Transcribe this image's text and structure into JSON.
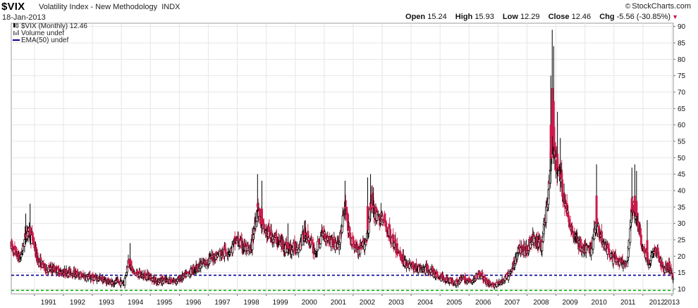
{
  "header": {
    "ticker": "$VIX",
    "name": "Volatility Index - New Methodology",
    "exchange": "INDX",
    "date": "18-Jan-2013",
    "brand": "StockCharts.com",
    "brand_symbol": "©"
  },
  "quote": {
    "open_label": "Open",
    "open": "15.24",
    "high_label": "High",
    "high": "15.93",
    "low_label": "Low",
    "low": "12.29",
    "close_label": "Close",
    "close": "12.46",
    "chg_label": "Chg",
    "chg": "-5.56 (-30.85%)"
  },
  "legend": {
    "price": "$VIX (Monthly) 12.46",
    "volume": "Volume undef",
    "ema": "EMA(50) undef"
  },
  "colors": {
    "up": "#000000",
    "down": "#cc1a4a",
    "blue_line": "#000099",
    "green_line": "#00aa00",
    "grid": "#e6e6e6"
  },
  "chart_data": {
    "type": "candlestick",
    "title": "$VIX Volatility Index - New Methodology INDX",
    "x_axis_labels": [
      "1991",
      "1992",
      "1993",
      "1994",
      "1995",
      "1996",
      "1997",
      "1998",
      "1999",
      "2000",
      "2001",
      "2002",
      "2003",
      "2004",
      "2005",
      "2006",
      "2007",
      "2008",
      "2009",
      "2010",
      "2011",
      "2012",
      "2013"
    ],
    "y_axis_labels": [
      10,
      15,
      20,
      25,
      30,
      35,
      40,
      45,
      50,
      55,
      60,
      65,
      70,
      75,
      80,
      85,
      90
    ],
    "ylim": [
      8.5,
      91
    ],
    "xlim": [
      1990.2,
      2013.05
    ],
    "horizontal_lines": [
      {
        "value": 14.2,
        "style": "dashed",
        "color": "#000099"
      },
      {
        "value": 9.6,
        "style": "dashed",
        "color": "#00aa00"
      }
    ],
    "anchors": [
      [
        1990.2,
        23
      ],
      [
        1990.5,
        19
      ],
      [
        1990.75,
        28
      ],
      [
        1990.95,
        25
      ],
      [
        1991.1,
        19
      ],
      [
        1991.4,
        16
      ],
      [
        1991.7,
        16
      ],
      [
        1991.95,
        15
      ],
      [
        1992.3,
        15
      ],
      [
        1992.6,
        14
      ],
      [
        1992.9,
        13.5
      ],
      [
        1993.3,
        13
      ],
      [
        1993.6,
        12
      ],
      [
        1993.9,
        12
      ],
      [
        1994.1,
        12
      ],
      [
        1994.25,
        19
      ],
      [
        1994.4,
        15
      ],
      [
        1994.7,
        14
      ],
      [
        1994.9,
        14
      ],
      [
        1995.2,
        12.5
      ],
      [
        1995.5,
        12.5
      ],
      [
        1995.9,
        12.5
      ],
      [
        1996.2,
        14
      ],
      [
        1996.5,
        16
      ],
      [
        1996.9,
        18
      ],
      [
        1997.2,
        20
      ],
      [
        1997.5,
        21
      ],
      [
        1997.8,
        22
      ],
      [
        1997.95,
        25
      ],
      [
        1998.2,
        23
      ],
      [
        1998.45,
        21
      ],
      [
        1998.7,
        35
      ],
      [
        1998.9,
        28
      ],
      [
        1999.2,
        26
      ],
      [
        1999.5,
        24
      ],
      [
        1999.8,
        22
      ],
      [
        2000.1,
        23
      ],
      [
        2000.35,
        27
      ],
      [
        2000.7,
        21
      ],
      [
        2000.95,
        27
      ],
      [
        2001.2,
        25
      ],
      [
        2001.5,
        23
      ],
      [
        2001.72,
        35
      ],
      [
        2001.9,
        25
      ],
      [
        2002.2,
        21
      ],
      [
        2002.45,
        25
      ],
      [
        2002.65,
        37
      ],
      [
        2002.8,
        32
      ],
      [
        2003.0,
        31
      ],
      [
        2003.2,
        28
      ],
      [
        2003.5,
        22
      ],
      [
        2003.8,
        18
      ],
      [
        2004.0,
        17
      ],
      [
        2004.3,
        16
      ],
      [
        2004.6,
        16
      ],
      [
        2004.9,
        14
      ],
      [
        2005.2,
        13
      ],
      [
        2005.5,
        12
      ],
      [
        2005.8,
        13
      ],
      [
        2006.1,
        12
      ],
      [
        2006.35,
        15
      ],
      [
        2006.6,
        12
      ],
      [
        2006.9,
        11
      ],
      [
        2007.2,
        12.5
      ],
      [
        2007.45,
        15
      ],
      [
        2007.7,
        22
      ],
      [
        2007.95,
        22
      ],
      [
        2008.2,
        25
      ],
      [
        2008.5,
        23
      ],
      [
        2008.75,
        40
      ],
      [
        2008.88,
        58
      ],
      [
        2008.95,
        50
      ],
      [
        2009.15,
        44
      ],
      [
        2009.35,
        34
      ],
      [
        2009.6,
        27
      ],
      [
        2009.9,
        22
      ],
      [
        2010.2,
        22
      ],
      [
        2010.4,
        30
      ],
      [
        2010.6,
        25
      ],
      [
        2010.9,
        20
      ],
      [
        2011.2,
        18
      ],
      [
        2011.45,
        17
      ],
      [
        2011.63,
        35
      ],
      [
        2011.8,
        32
      ],
      [
        2011.95,
        24
      ],
      [
        2012.2,
        18
      ],
      [
        2012.45,
        22
      ],
      [
        2012.7,
        16
      ],
      [
        2012.9,
        17
      ],
      [
        2013.05,
        13
      ]
    ],
    "spikes": [
      [
        1990.7,
        33
      ],
      [
        1990.85,
        36
      ],
      [
        1994.3,
        24
      ],
      [
        1998.7,
        45
      ],
      [
        1998.85,
        43
      ],
      [
        1999.75,
        30
      ],
      [
        2000.35,
        31
      ],
      [
        2001.72,
        43
      ],
      [
        2002.5,
        44
      ],
      [
        2002.6,
        45
      ],
      [
        2002.7,
        41
      ],
      [
        2008.82,
        75
      ],
      [
        2008.87,
        89
      ],
      [
        2008.92,
        84
      ],
      [
        2009.05,
        64
      ],
      [
        2009.15,
        56
      ],
      [
        2010.4,
        48
      ],
      [
        2011.62,
        47
      ],
      [
        2011.72,
        48
      ],
      [
        2011.78,
        46
      ],
      [
        2012.15,
        31
      ]
    ]
  }
}
